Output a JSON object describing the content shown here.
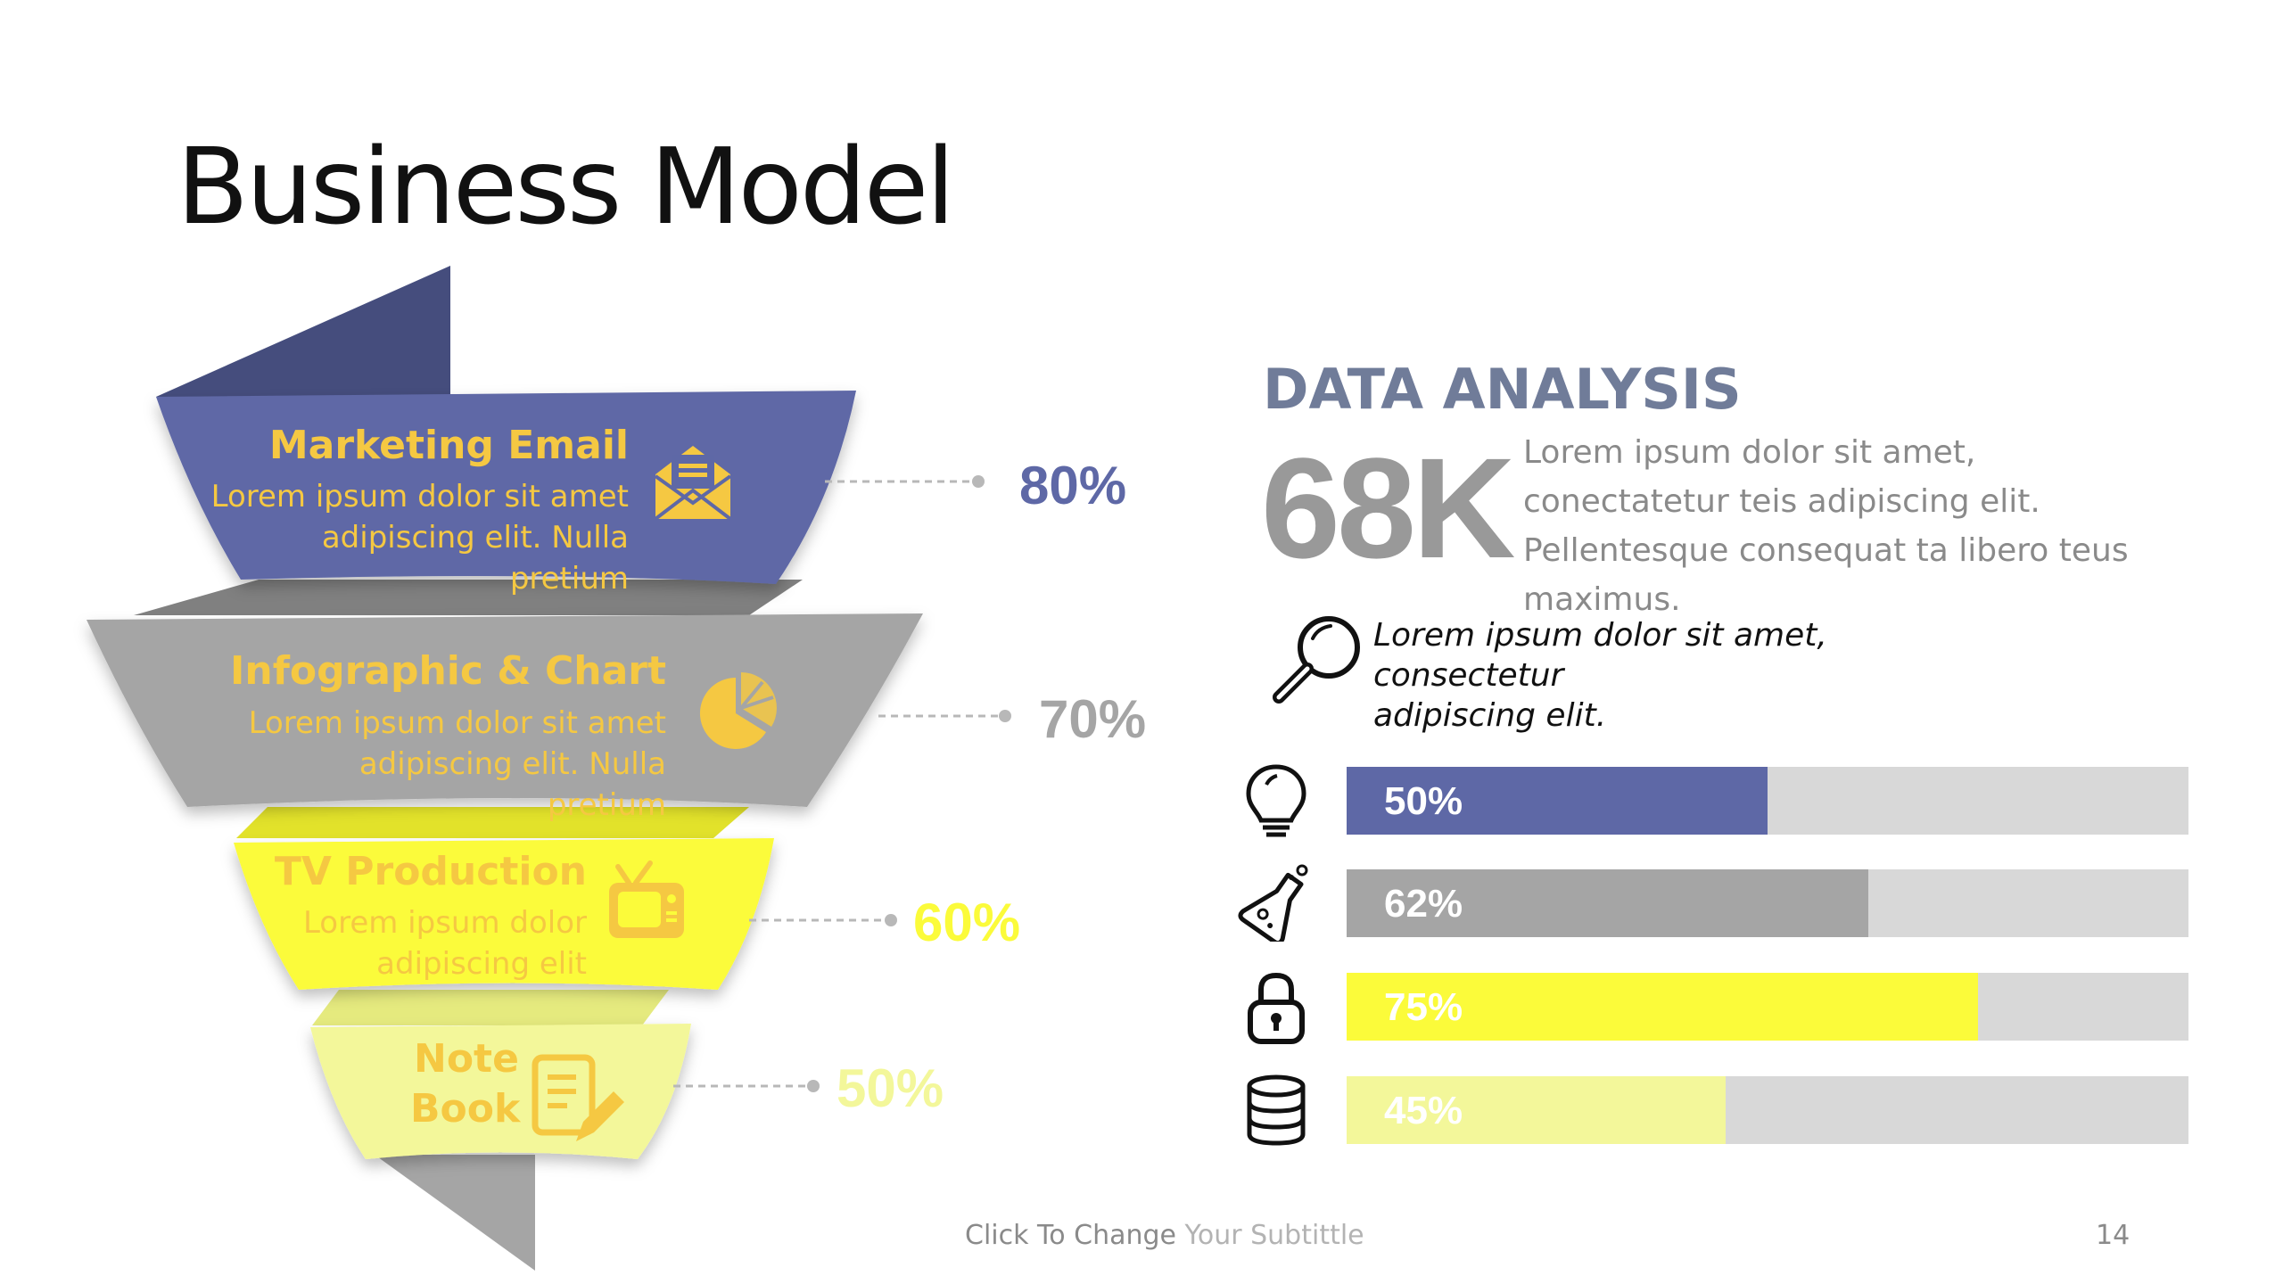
{
  "slide": {
    "title": "Business Model",
    "footer_subtitle_main": "Click To Change",
    "footer_subtitle_rest": " Your Subtittle",
    "page_number": "14"
  },
  "colors": {
    "navy": "#5e68a6",
    "navy_dark": "#454d7d",
    "gray": "#a5a5a5",
    "gray_dark": "#808080",
    "yellow": "#fbfb3a",
    "pale_yellow": "#f3f79a",
    "accent_gold": "#f5c842",
    "track": "#d8d8d8"
  },
  "funnel": [
    {
      "title": "Marketing Email",
      "desc": "Lorem ipsum dolor sit amet adipiscing elit. Nulla pretium",
      "icon": "envelope-icon",
      "percent_label": "80%",
      "value": 80
    },
    {
      "title": "Infographic & Chart",
      "desc": "Lorem ipsum dolor sit amet adipiscing elit. Nulla pretium",
      "icon": "pie-chart-icon",
      "percent_label": "70%",
      "value": 70
    },
    {
      "title": "TV Production",
      "desc": "Lorem ipsum dolor adipiscing elit",
      "icon": "tv-icon",
      "percent_label": "60%",
      "value": 60
    },
    {
      "title_line1": "Note",
      "title_line2": "Book",
      "icon": "notebook-pen-icon",
      "percent_label": "50%",
      "value": 50
    }
  ],
  "analysis": {
    "heading": "DATA ANALYSIS",
    "big_number": "68K",
    "description": "Lorem ipsum dolor sit amet, conectatetur teis adipiscing elit. Pellentesque consequat ta libero teus maximus.",
    "search_note_line1": "Lorem ipsum dolor sit amet,",
    "search_note_line2": "consectetur",
    "search_note_line3": "adipiscing elit.",
    "search_icon": "magnifier-icon",
    "bars": [
      {
        "label": "50%",
        "value": 50,
        "color": "#5e68a6",
        "icon": "lightbulb-icon"
      },
      {
        "label": "62%",
        "value": 62,
        "color": "#a5a5a5",
        "icon": "flask-icon"
      },
      {
        "label": "75%",
        "value": 75,
        "color": "#fbfb3a",
        "icon": "padlock-icon"
      },
      {
        "label": "45%",
        "value": 45,
        "color": "#f3f79a",
        "icon": "database-icon"
      }
    ]
  }
}
